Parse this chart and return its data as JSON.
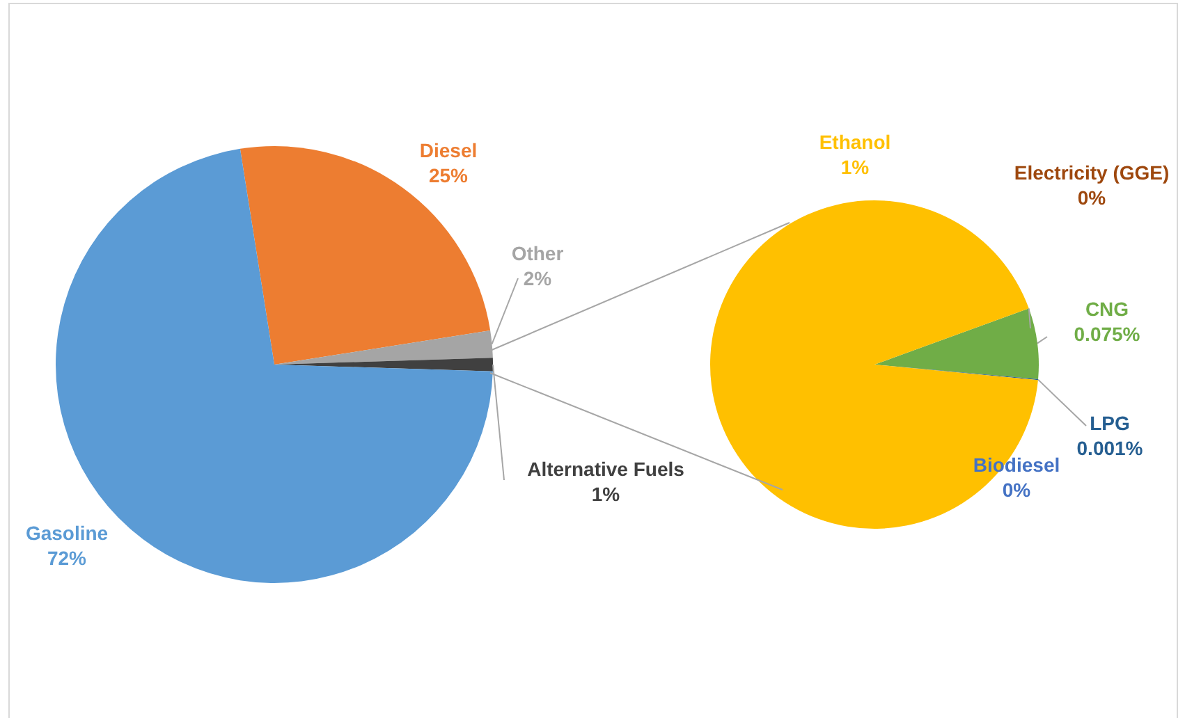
{
  "chart_data": [
    {
      "type": "pie",
      "categories": [
        "Diesel",
        "Other",
        "Alternative Fuels",
        "Gasoline"
      ],
      "values": [
        25,
        2,
        1,
        72
      ],
      "colors": [
        "#ed7d31",
        "#a5a5a5",
        "#404040",
        "#5b9bd5"
      ],
      "value_labels": [
        "25%",
        "2%",
        "1%",
        "72%"
      ]
    },
    {
      "type": "pie",
      "categories": [
        "Electricity (GGE)",
        "CNG",
        "LPG",
        "Biodiesel",
        "Ethanol"
      ],
      "values": [
        0,
        0.075,
        0.001,
        0,
        1
      ],
      "colors": [
        "#9e480e",
        "#70ad47",
        "#255e91",
        "#4472c4",
        "#ffc000"
      ],
      "value_labels": [
        "0%",
        "0.075%",
        "0.001%",
        "0%",
        "1%"
      ]
    }
  ]
}
